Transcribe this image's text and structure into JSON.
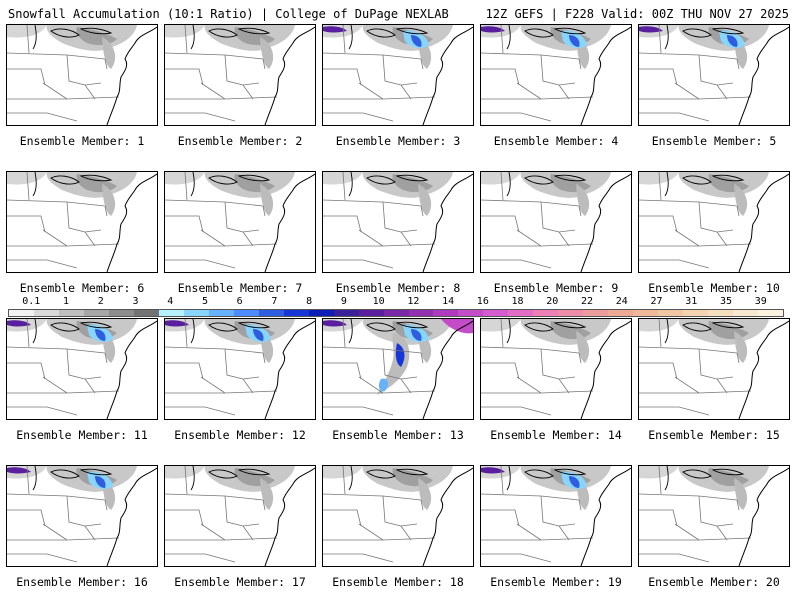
{
  "header": {
    "left": "Snowfall Accumulation (10:1 Ratio) | College of DuPage NEXLAB",
    "right": "12Z GEFS | F228 Valid: 00Z THU NOV 27 2025"
  },
  "colorbar": {
    "labels": [
      "0.1",
      "1",
      "2",
      "3",
      "4",
      "5",
      "6",
      "7",
      "8",
      "9",
      "10",
      "12",
      "14",
      "16",
      "18",
      "20",
      "22",
      "24",
      "27",
      "31",
      "35",
      "39"
    ],
    "colors": [
      "#f2f2f2",
      "#d9d9d9",
      "#bfbfbf",
      "#a6a6a6",
      "#8c8c8c",
      "#737373",
      "#b5f1ff",
      "#88d6ff",
      "#66b2ff",
      "#4d8cff",
      "#2f5de0",
      "#1736d8",
      "#0b1fb8",
      "#3a1f9a",
      "#5a1f9e",
      "#7a2aa8",
      "#9330b0",
      "#ae3bbf",
      "#c44cc8",
      "#d75bd0",
      "#e46cc6",
      "#ec7fb5",
      "#ee8da7",
      "#ee9b9b",
      "#efaa95",
      "#f0b898",
      "#f1c6a2",
      "#f3d3b0",
      "#f5dfc0",
      "#f8ead0",
      "#fbf3e0"
    ]
  },
  "members": [
    {
      "label": "Ensemble Member: 1",
      "intensity": "light"
    },
    {
      "label": "Ensemble Member: 2",
      "intensity": "light"
    },
    {
      "label": "Ensemble Member: 3",
      "intensity": "moderate"
    },
    {
      "label": "Ensemble Member: 4",
      "intensity": "moderate"
    },
    {
      "label": "Ensemble Member: 5",
      "intensity": "moderate"
    },
    {
      "label": "Ensemble Member: 6",
      "intensity": "light"
    },
    {
      "label": "Ensemble Member: 7",
      "intensity": "light"
    },
    {
      "label": "Ensemble Member: 8",
      "intensity": "light"
    },
    {
      "label": "Ensemble Member: 9",
      "intensity": "light"
    },
    {
      "label": "Ensemble Member: 10",
      "intensity": "light"
    },
    {
      "label": "Ensemble Member: 11",
      "intensity": "moderate"
    },
    {
      "label": "Ensemble Member: 12",
      "intensity": "moderate"
    },
    {
      "label": "Ensemble Member: 13",
      "intensity": "heavy"
    },
    {
      "label": "Ensemble Member: 14",
      "intensity": "light"
    },
    {
      "label": "Ensemble Member: 15",
      "intensity": "light"
    },
    {
      "label": "Ensemble Member: 16",
      "intensity": "moderate"
    },
    {
      "label": "Ensemble Member: 17",
      "intensity": "light"
    },
    {
      "label": "Ensemble Member: 18",
      "intensity": "light"
    },
    {
      "label": "Ensemble Member: 19",
      "intensity": "moderate"
    },
    {
      "label": "Ensemble Member: 20",
      "intensity": "light"
    }
  ]
}
